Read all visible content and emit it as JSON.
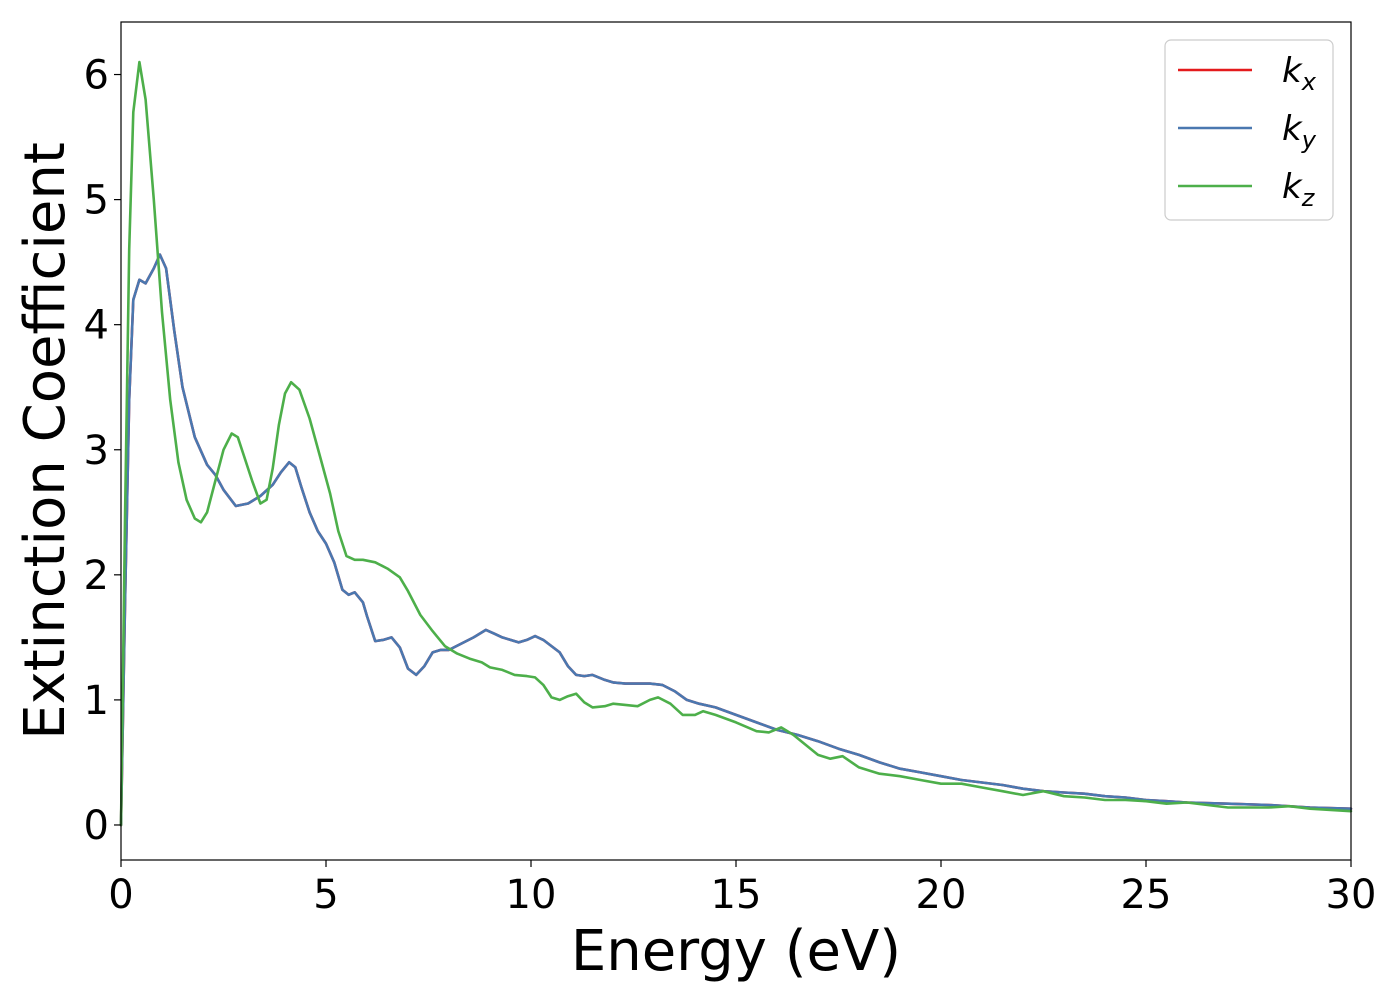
{
  "chart_data": {
    "type": "line",
    "xlabel": "Energy (eV)",
    "ylabel": "Extinction Coefficient",
    "xlim": [
      0,
      30
    ],
    "ylim": [
      -0.28,
      6.42
    ],
    "xticks": [
      0,
      5,
      10,
      15,
      20,
      25,
      30
    ],
    "yticks": [
      0,
      1,
      2,
      3,
      4,
      5,
      6
    ],
    "legend_position": "upper right",
    "grid": false,
    "series": [
      {
        "name": "k",
        "subscript": "x",
        "color": "#e41a1c",
        "x": [
          0,
          0.1,
          0.2,
          0.3,
          0.45,
          0.6,
          0.8,
          0.95,
          1.1,
          1.3,
          1.5,
          1.8,
          2.1,
          2.3,
          2.5,
          2.8,
          3.1,
          3.4,
          3.7,
          3.9,
          4.1,
          4.25,
          4.4,
          4.6,
          4.8,
          5.0,
          5.2,
          5.4,
          5.55,
          5.7,
          5.9,
          6.0,
          6.2,
          6.4,
          6.6,
          6.8,
          7.0,
          7.2,
          7.4,
          7.6,
          7.8,
          8.0,
          8.3,
          8.6,
          8.9,
          9.1,
          9.3,
          9.5,
          9.7,
          9.9,
          10.1,
          10.3,
          10.5,
          10.7,
          10.9,
          11.1,
          11.3,
          11.5,
          11.8,
          12.0,
          12.3,
          12.6,
          12.9,
          13.2,
          13.5,
          13.8,
          14.1,
          14.5,
          15.0,
          15.5,
          16.0,
          16.5,
          17.0,
          17.5,
          18.0,
          18.5,
          19.0,
          19.5,
          20.0,
          20.5,
          21.0,
          21.5,
          22.0,
          22.5,
          23.0,
          23.5,
          24.0,
          24.5,
          25.0,
          25.5,
          26.0,
          27.0,
          28.0,
          29.0,
          30.0
        ],
        "values": [
          0,
          1.8,
          3.4,
          4.2,
          4.36,
          4.33,
          4.45,
          4.56,
          4.45,
          3.95,
          3.5,
          3.1,
          2.88,
          2.8,
          2.68,
          2.55,
          2.57,
          2.63,
          2.72,
          2.82,
          2.9,
          2.86,
          2.7,
          2.5,
          2.35,
          2.25,
          2.1,
          1.88,
          1.84,
          1.86,
          1.78,
          1.67,
          1.47,
          1.48,
          1.5,
          1.42,
          1.25,
          1.2,
          1.27,
          1.38,
          1.4,
          1.4,
          1.45,
          1.5,
          1.56,
          1.53,
          1.5,
          1.48,
          1.46,
          1.48,
          1.51,
          1.48,
          1.43,
          1.38,
          1.27,
          1.2,
          1.19,
          1.2,
          1.16,
          1.14,
          1.13,
          1.13,
          1.13,
          1.12,
          1.07,
          1.0,
          0.97,
          0.94,
          0.88,
          0.82,
          0.76,
          0.72,
          0.67,
          0.61,
          0.56,
          0.5,
          0.45,
          0.42,
          0.39,
          0.36,
          0.34,
          0.32,
          0.29,
          0.27,
          0.26,
          0.25,
          0.23,
          0.22,
          0.2,
          0.19,
          0.18,
          0.17,
          0.16,
          0.14,
          0.13
        ]
      },
      {
        "name": "k",
        "subscript": "y",
        "color": "#4a78b0",
        "x": [
          0,
          0.1,
          0.2,
          0.3,
          0.45,
          0.6,
          0.8,
          0.95,
          1.1,
          1.3,
          1.5,
          1.8,
          2.1,
          2.3,
          2.5,
          2.8,
          3.1,
          3.4,
          3.7,
          3.9,
          4.1,
          4.25,
          4.4,
          4.6,
          4.8,
          5.0,
          5.2,
          5.4,
          5.55,
          5.7,
          5.9,
          6.0,
          6.2,
          6.4,
          6.6,
          6.8,
          7.0,
          7.2,
          7.4,
          7.6,
          7.8,
          8.0,
          8.3,
          8.6,
          8.9,
          9.1,
          9.3,
          9.5,
          9.7,
          9.9,
          10.1,
          10.3,
          10.5,
          10.7,
          10.9,
          11.1,
          11.3,
          11.5,
          11.8,
          12.0,
          12.3,
          12.6,
          12.9,
          13.2,
          13.5,
          13.8,
          14.1,
          14.5,
          15.0,
          15.5,
          16.0,
          16.5,
          17.0,
          17.5,
          18.0,
          18.5,
          19.0,
          19.5,
          20.0,
          20.5,
          21.0,
          21.5,
          22.0,
          22.5,
          23.0,
          23.5,
          24.0,
          24.5,
          25.0,
          25.5,
          26.0,
          27.0,
          28.0,
          29.0,
          30.0
        ],
        "values": [
          0,
          1.8,
          3.4,
          4.2,
          4.36,
          4.33,
          4.45,
          4.56,
          4.45,
          3.95,
          3.5,
          3.1,
          2.88,
          2.8,
          2.68,
          2.55,
          2.57,
          2.63,
          2.72,
          2.82,
          2.9,
          2.86,
          2.7,
          2.5,
          2.35,
          2.25,
          2.1,
          1.88,
          1.84,
          1.86,
          1.78,
          1.67,
          1.47,
          1.48,
          1.5,
          1.42,
          1.25,
          1.2,
          1.27,
          1.38,
          1.4,
          1.4,
          1.45,
          1.5,
          1.56,
          1.53,
          1.5,
          1.48,
          1.46,
          1.48,
          1.51,
          1.48,
          1.43,
          1.38,
          1.27,
          1.2,
          1.19,
          1.2,
          1.16,
          1.14,
          1.13,
          1.13,
          1.13,
          1.12,
          1.07,
          1.0,
          0.97,
          0.94,
          0.88,
          0.82,
          0.76,
          0.72,
          0.67,
          0.61,
          0.56,
          0.5,
          0.45,
          0.42,
          0.39,
          0.36,
          0.34,
          0.32,
          0.29,
          0.27,
          0.26,
          0.25,
          0.23,
          0.22,
          0.2,
          0.19,
          0.18,
          0.17,
          0.16,
          0.14,
          0.13
        ]
      },
      {
        "name": "k",
        "subscript": "z",
        "color": "#4daf4a",
        "x": [
          0,
          0.1,
          0.2,
          0.3,
          0.45,
          0.6,
          0.8,
          1.0,
          1.2,
          1.4,
          1.6,
          1.8,
          1.95,
          2.1,
          2.3,
          2.5,
          2.7,
          2.85,
          3.0,
          3.2,
          3.4,
          3.55,
          3.7,
          3.85,
          4.0,
          4.15,
          4.35,
          4.6,
          4.85,
          5.1,
          5.3,
          5.5,
          5.7,
          5.9,
          6.2,
          6.5,
          6.8,
          7.0,
          7.3,
          7.6,
          7.9,
          8.2,
          8.5,
          8.8,
          9.0,
          9.3,
          9.6,
          9.9,
          10.1,
          10.3,
          10.5,
          10.7,
          10.9,
          11.1,
          11.3,
          11.5,
          11.8,
          12.0,
          12.3,
          12.6,
          12.9,
          13.1,
          13.4,
          13.7,
          14.0,
          14.2,
          14.5,
          15.0,
          15.5,
          15.8,
          16.1,
          16.4,
          16.7,
          17.0,
          17.3,
          17.6,
          18.0,
          18.5,
          19.0,
          19.5,
          20.0,
          20.5,
          21.0,
          21.5,
          22.0,
          22.5,
          23.0,
          23.5,
          24.0,
          24.5,
          25.0,
          25.5,
          26.0,
          27.0,
          28.0,
          28.5,
          29.0,
          30.0
        ],
        "values": [
          0,
          2.5,
          4.6,
          5.7,
          6.1,
          5.8,
          5.0,
          4.1,
          3.4,
          2.9,
          2.6,
          2.45,
          2.42,
          2.5,
          2.75,
          3.0,
          3.13,
          3.1,
          2.95,
          2.75,
          2.57,
          2.6,
          2.85,
          3.2,
          3.45,
          3.54,
          3.48,
          3.25,
          2.95,
          2.65,
          2.35,
          2.15,
          2.12,
          2.12,
          2.1,
          2.05,
          1.98,
          1.87,
          1.68,
          1.55,
          1.43,
          1.37,
          1.33,
          1.3,
          1.26,
          1.24,
          1.2,
          1.19,
          1.18,
          1.12,
          1.02,
          1.0,
          1.03,
          1.05,
          0.98,
          0.94,
          0.95,
          0.97,
          0.96,
          0.95,
          1.0,
          1.02,
          0.97,
          0.88,
          0.88,
          0.91,
          0.88,
          0.82,
          0.75,
          0.74,
          0.78,
          0.72,
          0.64,
          0.56,
          0.53,
          0.55,
          0.46,
          0.41,
          0.39,
          0.36,
          0.33,
          0.33,
          0.3,
          0.27,
          0.24,
          0.27,
          0.23,
          0.22,
          0.2,
          0.2,
          0.19,
          0.17,
          0.18,
          0.14,
          0.14,
          0.15,
          0.13,
          0.11
        ]
      }
    ]
  }
}
